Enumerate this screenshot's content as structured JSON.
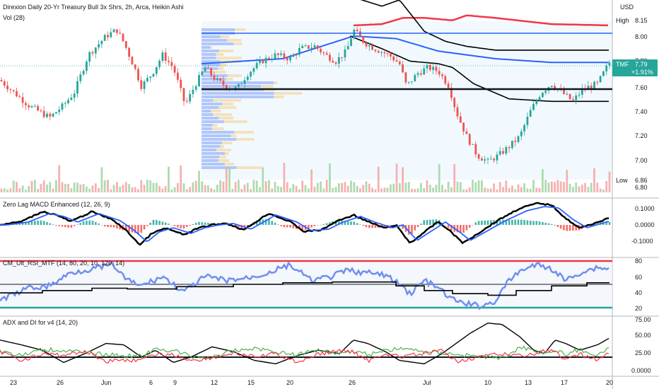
{
  "header": {
    "title": "Direxion Daily 20-Yr Treasury Bull 3x Shrs, 2h, Arca, Heikin Ashi",
    "volume_label": "Vol (28)",
    "currency": "USD"
  },
  "price_axis": {
    "ticks": [
      "8.00",
      "7.80",
      "7.60",
      "7.40",
      "7.20",
      "7.00",
      "6.80"
    ],
    "high_label": "High",
    "high_value": "8.15",
    "low_label": "Low",
    "low_value": "6.86",
    "ticker": "TMF",
    "last_price": "7.79",
    "change": "+1.91%"
  },
  "panes": {
    "macd_title": "Zero Lag MACD Enhanced (12, 26, 9)",
    "macd_ticks": [
      "0.1000",
      "0.0000",
      "-0.1000"
    ],
    "rsi_title": "CM_Ult_RSI_MTF (14, 80, 20, 10, 120, 14)",
    "rsi_ticks": [
      "80",
      "60",
      "40",
      "20"
    ],
    "adx_title": "ADX and DI for v4 (14, 20)",
    "adx_ticks": [
      "75.00",
      "50.00",
      "25.00",
      "0.0000"
    ]
  },
  "time_axis": [
    "23",
    "26",
    "Jun",
    "6",
    "9",
    "12",
    "15",
    "20",
    "26",
    "Jul",
    "10",
    "13",
    "17",
    "20"
  ],
  "colors": {
    "up": "#26a69a",
    "down": "#ef5350",
    "blue": "#2962ff",
    "black": "#000000",
    "red": "#f23645",
    "rsi_blue": "#6f8ff0",
    "adx_green": "#4caf50"
  },
  "chart_data": {
    "type": "candlestick",
    "price_range": [
      6.8,
      8.15
    ],
    "last_close": 7.79,
    "anchors_close": [
      [
        0,
        7.65
      ],
      [
        40,
        7.45
      ],
      [
        70,
        7.35
      ],
      [
        90,
        7.45
      ],
      [
        105,
        7.55
      ],
      [
        125,
        7.85
      ],
      [
        150,
        8.0
      ],
      [
        165,
        8.05
      ],
      [
        175,
        7.95
      ],
      [
        190,
        7.75
      ],
      [
        200,
        7.6
      ],
      [
        215,
        7.7
      ],
      [
        230,
        7.85
      ],
      [
        245,
        7.75
      ],
      [
        262,
        7.45
      ],
      [
        275,
        7.6
      ],
      [
        290,
        7.75
      ],
      [
        305,
        7.65
      ],
      [
        320,
        7.6
      ],
      [
        335,
        7.58
      ],
      [
        350,
        7.7
      ],
      [
        370,
        7.8
      ],
      [
        390,
        7.85
      ],
      [
        410,
        7.82
      ],
      [
        425,
        7.9
      ],
      [
        445,
        7.92
      ],
      [
        460,
        7.85
      ],
      [
        475,
        7.8
      ],
      [
        490,
        7.88
      ],
      [
        500,
        8.05
      ],
      [
        515,
        7.95
      ],
      [
        530,
        7.9
      ],
      [
        550,
        7.85
      ],
      [
        565,
        7.78
      ],
      [
        575,
        7.6
      ],
      [
        590,
        7.7
      ],
      [
        605,
        7.75
      ],
      [
        620,
        7.72
      ],
      [
        635,
        7.6
      ],
      [
        645,
        7.4
      ],
      [
        660,
        7.2
      ],
      [
        675,
        7.05
      ],
      [
        690,
        7.0
      ],
      [
        705,
        7.05
      ],
      [
        720,
        7.12
      ],
      [
        735,
        7.2
      ],
      [
        750,
        7.4
      ],
      [
        765,
        7.55
      ],
      [
        780,
        7.62
      ],
      [
        795,
        7.55
      ],
      [
        810,
        7.48
      ],
      [
        825,
        7.58
      ],
      [
        845,
        7.62
      ],
      [
        862,
        7.79
      ]
    ],
    "macd_range": [
      -0.15,
      0.15
    ],
    "macd_anchors": [
      [
        0,
        0.0
      ],
      [
        30,
        0.02
      ],
      [
        60,
        0.08
      ],
      [
        80,
        0.06
      ],
      [
        100,
        0.02
      ],
      [
        130,
        0.08
      ],
      [
        160,
        0.03
      ],
      [
        180,
        -0.04
      ],
      [
        198,
        -0.12
      ],
      [
        215,
        -0.05
      ],
      [
        235,
        -0.02
      ],
      [
        260,
        -0.06
      ],
      [
        280,
        -0.02
      ],
      [
        300,
        0.0
      ],
      [
        320,
        0.01
      ],
      [
        345,
        -0.03
      ],
      [
        380,
        0.07
      ],
      [
        410,
        0.02
      ],
      [
        430,
        -0.04
      ],
      [
        455,
        -0.03
      ],
      [
        475,
        0.02
      ],
      [
        500,
        0.06
      ],
      [
        520,
        0.02
      ],
      [
        545,
        -0.02
      ],
      [
        560,
        0.0
      ],
      [
        580,
        -0.11
      ],
      [
        595,
        -0.06
      ],
      [
        620,
        0.02
      ],
      [
        640,
        -0.05
      ],
      [
        655,
        -0.11
      ],
      [
        680,
        -0.04
      ],
      [
        705,
        0.03
      ],
      [
        735,
        0.1
      ],
      [
        760,
        0.13
      ],
      [
        780,
        0.12
      ],
      [
        800,
        0.04
      ],
      [
        820,
        -0.02
      ],
      [
        840,
        0.01
      ],
      [
        862,
        0.04
      ]
    ],
    "rsi_range": [
      20,
      80
    ],
    "rsi_anchors": [
      [
        0,
        30
      ],
      [
        40,
        45
      ],
      [
        70,
        48
      ],
      [
        100,
        65
      ],
      [
        130,
        70
      ],
      [
        160,
        75
      ],
      [
        180,
        55
      ],
      [
        200,
        48
      ],
      [
        230,
        60
      ],
      [
        260,
        40
      ],
      [
        290,
        60
      ],
      [
        320,
        55
      ],
      [
        350,
        58
      ],
      [
        380,
        65
      ],
      [
        410,
        75
      ],
      [
        440,
        55
      ],
      [
        470,
        60
      ],
      [
        490,
        68
      ],
      [
        515,
        65
      ],
      [
        545,
        62
      ],
      [
        565,
        50
      ],
      [
        580,
        38
      ],
      [
        600,
        55
      ],
      [
        620,
        45
      ],
      [
        640,
        30
      ],
      [
        660,
        25
      ],
      [
        680,
        22
      ],
      [
        700,
        28
      ],
      [
        720,
        55
      ],
      [
        740,
        70
      ],
      [
        760,
        75
      ],
      [
        780,
        70
      ],
      [
        800,
        55
      ],
      [
        820,
        65
      ],
      [
        845,
        72
      ],
      [
        862,
        70
      ]
    ],
    "adx_range": [
      0,
      80
    ],
    "adx_anchors": [
      [
        0,
        45
      ],
      [
        30,
        38
      ],
      [
        60,
        30
      ],
      [
        90,
        12
      ],
      [
        120,
        25
      ],
      [
        150,
        40
      ],
      [
        175,
        38
      ],
      [
        200,
        20
      ],
      [
        220,
        30
      ],
      [
        245,
        12
      ],
      [
        270,
        20
      ],
      [
        300,
        35
      ],
      [
        330,
        28
      ],
      [
        360,
        15
      ],
      [
        390,
        10
      ],
      [
        420,
        22
      ],
      [
        450,
        30
      ],
      [
        480,
        25
      ],
      [
        500,
        45
      ],
      [
        520,
        40
      ],
      [
        545,
        28
      ],
      [
        565,
        15
      ],
      [
        600,
        10
      ],
      [
        625,
        25
      ],
      [
        645,
        40
      ],
      [
        665,
        55
      ],
      [
        690,
        70
      ],
      [
        710,
        68
      ],
      [
        735,
        50
      ],
      [
        755,
        30
      ],
      [
        770,
        25
      ],
      [
        785,
        45
      ],
      [
        800,
        40
      ],
      [
        820,
        30
      ],
      [
        845,
        38
      ],
      [
        862,
        48
      ]
    ]
  }
}
